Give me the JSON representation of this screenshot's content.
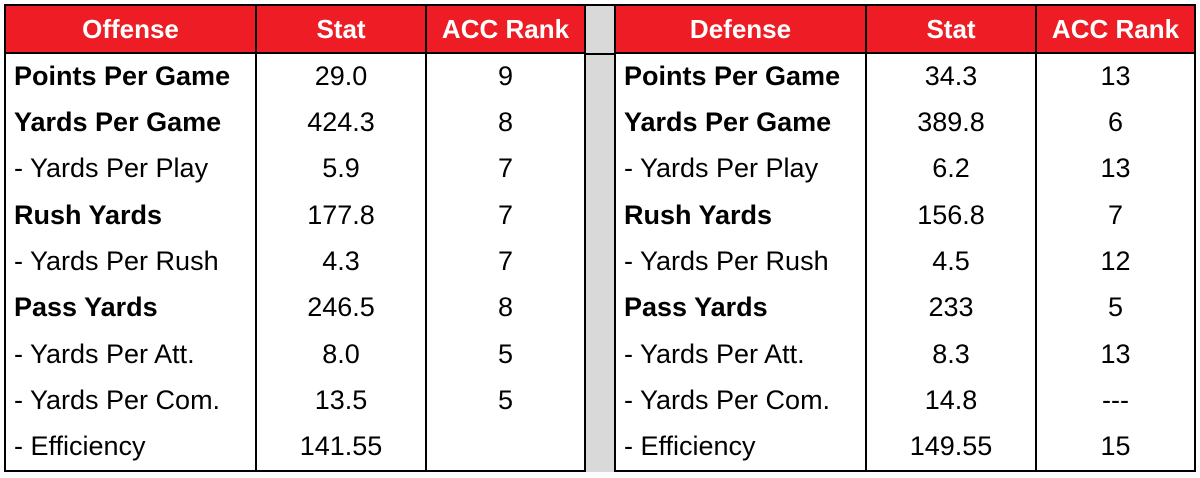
{
  "colors": {
    "header_bg": "#ee1c24",
    "header_text": "#ffffff",
    "gap_bg": "#d9d9d9",
    "border": "#000000"
  },
  "offense": {
    "headers": [
      "Offense",
      "Stat",
      "ACC Rank"
    ],
    "rows": [
      {
        "label": "Points Per Game",
        "stat": "29.0",
        "rank": "9",
        "bold": true
      },
      {
        "label": "Yards Per Game",
        "stat": "424.3",
        "rank": "8",
        "bold": true
      },
      {
        "label": "- Yards Per Play",
        "stat": "5.9",
        "rank": "7",
        "bold": false
      },
      {
        "label": "Rush Yards",
        "stat": "177.8",
        "rank": "7",
        "bold": true
      },
      {
        "label": "- Yards Per Rush",
        "stat": "4.3",
        "rank": "7",
        "bold": false
      },
      {
        "label": "Pass Yards",
        "stat": "246.5",
        "rank": "8",
        "bold": true
      },
      {
        "label": "- Yards Per Att.",
        "stat": "8.0",
        "rank": "5",
        "bold": false
      },
      {
        "label": "- Yards Per Com.",
        "stat": "13.5",
        "rank": "5",
        "bold": false
      },
      {
        "label": "- Efficiency",
        "stat": "141.55",
        "rank": "",
        "bold": false
      }
    ]
  },
  "defense": {
    "headers": [
      "Defense",
      "Stat",
      "ACC Rank"
    ],
    "rows": [
      {
        "label": "Points Per Game",
        "stat": "34.3",
        "rank": "13",
        "bold": true
      },
      {
        "label": "Yards Per Game",
        "stat": "389.8",
        "rank": "6",
        "bold": true
      },
      {
        "label": "- Yards Per Play",
        "stat": "6.2",
        "rank": "13",
        "bold": false
      },
      {
        "label": "Rush Yards",
        "stat": "156.8",
        "rank": "7",
        "bold": true
      },
      {
        "label": "- Yards Per Rush",
        "stat": "4.5",
        "rank": "12",
        "bold": false
      },
      {
        "label": "Pass Yards",
        "stat": "233",
        "rank": "5",
        "bold": true
      },
      {
        "label": "- Yards Per Att.",
        "stat": "8.3",
        "rank": "13",
        "bold": false
      },
      {
        "label": "- Yards Per Com.",
        "stat": "14.8",
        "rank": "---",
        "bold": false
      },
      {
        "label": "- Efficiency",
        "stat": "149.55",
        "rank": "15",
        "bold": false
      }
    ]
  }
}
